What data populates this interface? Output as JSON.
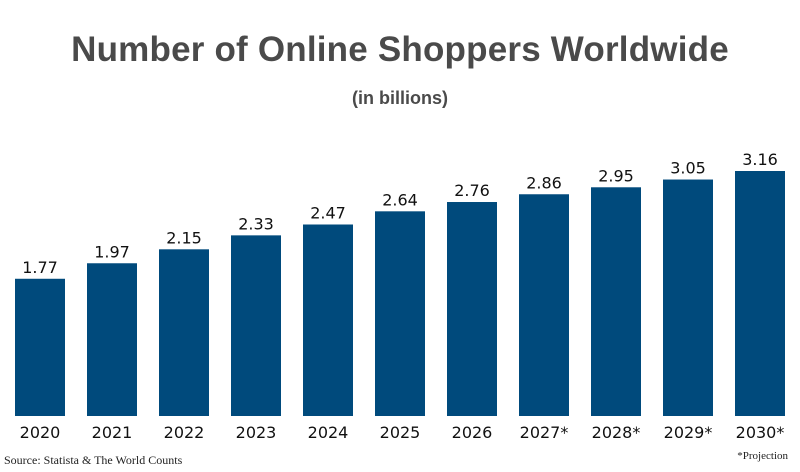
{
  "footer": {
    "source": "Source: Statista & The World Counts",
    "note": "*Projection"
  },
  "colors": {
    "bar": "#004a7c",
    "title": "#4a4a4a",
    "text": "#111111"
  },
  "chart_data": {
    "type": "bar",
    "title": "Number of Online Shoppers Worldwide",
    "subtitle": "(in billions)",
    "xlabel": "",
    "ylabel": "",
    "categories": [
      "2020",
      "2021",
      "2022",
      "2023",
      "2024",
      "2025",
      "2026",
      "2027*",
      "2028*",
      "2029*",
      "2030*"
    ],
    "values": [
      1.77,
      1.97,
      2.15,
      2.33,
      2.47,
      2.64,
      2.76,
      2.86,
      2.95,
      3.05,
      3.16
    ],
    "value_labels": [
      "1.77",
      "1.97",
      "2.15",
      "2.33",
      "2.47",
      "2.64",
      "2.76",
      "2.86",
      "2.95",
      "3.05",
      "3.16"
    ],
    "ylim": [
      0,
      3.16
    ],
    "grid": false,
    "legend": "none"
  }
}
